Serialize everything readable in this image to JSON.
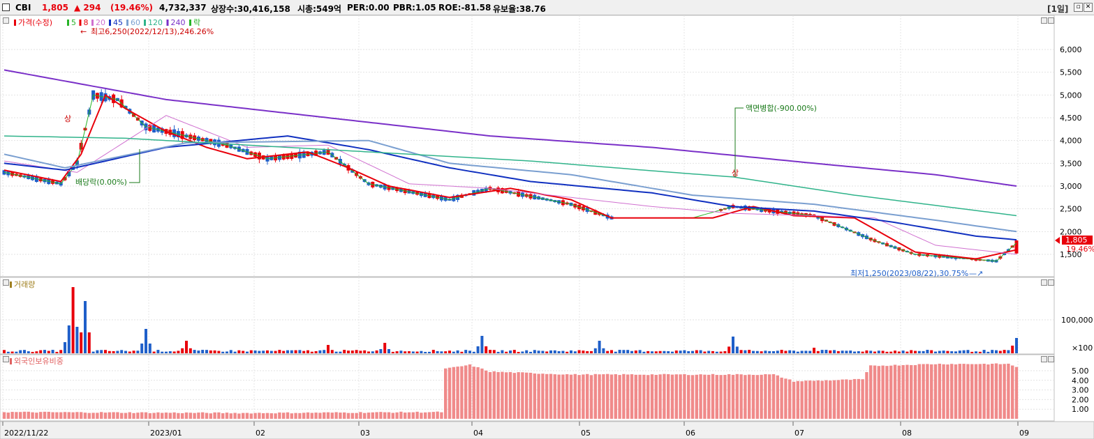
{
  "header": {
    "name": "CBI",
    "price": "1,805",
    "change": "▲ 294",
    "change_pct": "(19.46%)",
    "volume": "4,732,337",
    "listed": "상장수:30,416,158",
    "mktcap": "시총:549억",
    "per": "PER:0.00",
    "pbr": "PBR:1.05",
    "roe": "ROE:-81.58",
    "float": "유보율:38.76",
    "period": "[1일]",
    "colors": {
      "up": "#e8000b",
      "down": "#1f5fc9"
    }
  },
  "legend": [
    {
      "label": "가격(수정)",
      "color": "#e8000b"
    },
    {
      "label": "5",
      "color": "#27b327"
    },
    {
      "label": "8",
      "color": "#e8000b"
    },
    {
      "label": "20",
      "color": "#d070d0"
    },
    {
      "label": "45",
      "color": "#1030c0"
    },
    {
      "label": "60",
      "color": "#7a9fd0"
    },
    {
      "label": "120",
      "color": "#2fb38a"
    },
    {
      "label": "240",
      "color": "#7a30c8"
    },
    {
      "label": "락",
      "color": "#27b327"
    }
  ],
  "annotations": {
    "high": "최고6,250(2022/12/13),246.26%",
    "low": "최저1,250(2023/08/22),30.75%",
    "dividend": "배당락(0.00%)",
    "split": "액면병합(-900.00%)",
    "limit_up": "상"
  },
  "price_tag": {
    "value": "1,805",
    "pct": "19.46%"
  },
  "volume_panel": {
    "title": "거래량"
  },
  "foreign_panel": {
    "title": "외국인보유비중"
  },
  "chart_data": {
    "type": "candlestick",
    "price_axis": {
      "ticks": [
        "6,000",
        "5,500",
        "5,000",
        "4,500",
        "4,000",
        "3,500",
        "3,000",
        "2,500",
        "2,000",
        "1,500"
      ],
      "range": [
        1250,
        6400
      ]
    },
    "volume_axis": {
      "ticks": [
        "100,000",
        "×100"
      ]
    },
    "foreign_axis": {
      "ticks": [
        "5.00",
        "4.00",
        "3.00",
        "2.00",
        "1.00"
      ],
      "range": [
        0,
        6.3
      ]
    },
    "x_labels": [
      "2022/11/22",
      "2023/01",
      "02",
      "03",
      "04",
      "05",
      "06",
      "07",
      "08",
      "09"
    ],
    "grid": true,
    "ma": {
      "5": [
        [
          0,
          3300
        ],
        [
          14,
          3050
        ],
        [
          18,
          3500
        ],
        [
          22,
          5000
        ],
        [
          28,
          4900
        ],
        [
          35,
          4300
        ],
        [
          45,
          4100
        ],
        [
          55,
          3900
        ],
        [
          65,
          3600
        ],
        [
          80,
          3750
        ],
        [
          90,
          3050
        ],
        [
          110,
          2700
        ],
        [
          120,
          2950
        ],
        [
          140,
          2600
        ],
        [
          150,
          2300
        ],
        [
          170,
          2300
        ],
        [
          180,
          2550
        ],
        [
          200,
          2350
        ],
        [
          215,
          1800
        ],
        [
          225,
          1500
        ],
        [
          245,
          1350
        ],
        [
          250,
          1750
        ]
      ],
      "8": [
        [
          0,
          3350
        ],
        [
          14,
          3100
        ],
        [
          19,
          3700
        ],
        [
          25,
          5000
        ],
        [
          30,
          4700
        ],
        [
          40,
          4200
        ],
        [
          50,
          3850
        ],
        [
          60,
          3600
        ],
        [
          75,
          3750
        ],
        [
          85,
          3400
        ],
        [
          95,
          3000
        ],
        [
          110,
          2750
        ],
        [
          125,
          2950
        ],
        [
          140,
          2700
        ],
        [
          150,
          2300
        ],
        [
          175,
          2300
        ],
        [
          185,
          2550
        ],
        [
          195,
          2350
        ],
        [
          210,
          2300
        ],
        [
          225,
          1550
        ],
        [
          240,
          1400
        ],
        [
          250,
          1600
        ]
      ],
      "20": [
        [
          0,
          3550
        ],
        [
          18,
          3300
        ],
        [
          40,
          4550
        ],
        [
          60,
          3850
        ],
        [
          80,
          3900
        ],
        [
          100,
          3050
        ],
        [
          120,
          2950
        ],
        [
          140,
          2750
        ],
        [
          160,
          2550
        ],
        [
          180,
          2400
        ],
        [
          200,
          2350
        ],
        [
          215,
          2300
        ],
        [
          230,
          1700
        ],
        [
          250,
          1500
        ]
      ],
      "45": [
        [
          0,
          3500
        ],
        [
          15,
          3350
        ],
        [
          40,
          3850
        ],
        [
          70,
          4100
        ],
        [
          90,
          3800
        ],
        [
          110,
          3400
        ],
        [
          130,
          3100
        ],
        [
          160,
          2850
        ],
        [
          180,
          2550
        ],
        [
          200,
          2450
        ],
        [
          220,
          2200
        ],
        [
          240,
          1900
        ],
        [
          250,
          1820
        ]
      ],
      "60": [
        [
          0,
          3700
        ],
        [
          15,
          3400
        ],
        [
          45,
          3950
        ],
        [
          90,
          4000
        ],
        [
          110,
          3500
        ],
        [
          140,
          3250
        ],
        [
          170,
          2800
        ],
        [
          200,
          2600
        ],
        [
          230,
          2250
        ],
        [
          250,
          2000
        ]
      ],
      "120": [
        [
          0,
          4100
        ],
        [
          30,
          4050
        ],
        [
          60,
          3900
        ],
        [
          100,
          3700
        ],
        [
          130,
          3550
        ],
        [
          165,
          3300
        ],
        [
          180,
          3200
        ],
        [
          210,
          2800
        ],
        [
          250,
          2350
        ]
      ],
      "240": [
        [
          0,
          5550
        ],
        [
          40,
          4900
        ],
        [
          80,
          4500
        ],
        [
          120,
          4100
        ],
        [
          160,
          3850
        ],
        [
          200,
          3500
        ],
        [
          230,
          3250
        ],
        [
          250,
          3000
        ]
      ]
    },
    "volume_peaks": [
      [
        16,
        0.4
      ],
      [
        17,
        0.95
      ],
      [
        20,
        0.75
      ],
      [
        35,
        0.35
      ],
      [
        45,
        0.18
      ],
      [
        80,
        0.12
      ],
      [
        94,
        0.15
      ],
      [
        118,
        0.25
      ],
      [
        147,
        0.18
      ],
      [
        180,
        0.24
      ],
      [
        200,
        0.08
      ],
      [
        249,
        0.11
      ],
      [
        250,
        0.22
      ]
    ],
    "foreign_pct": [
      [
        0,
        0.7
      ],
      [
        60,
        0.6
      ],
      [
        108,
        0.7
      ],
      [
        109,
        5.2
      ],
      [
        115,
        5.6
      ],
      [
        120,
        4.9
      ],
      [
        140,
        4.6
      ],
      [
        190,
        4.6
      ],
      [
        195,
        3.9
      ],
      [
        212,
        4.1
      ],
      [
        214,
        5.5
      ],
      [
        230,
        5.7
      ],
      [
        248,
        5.7
      ],
      [
        250,
        5.4
      ]
    ]
  }
}
